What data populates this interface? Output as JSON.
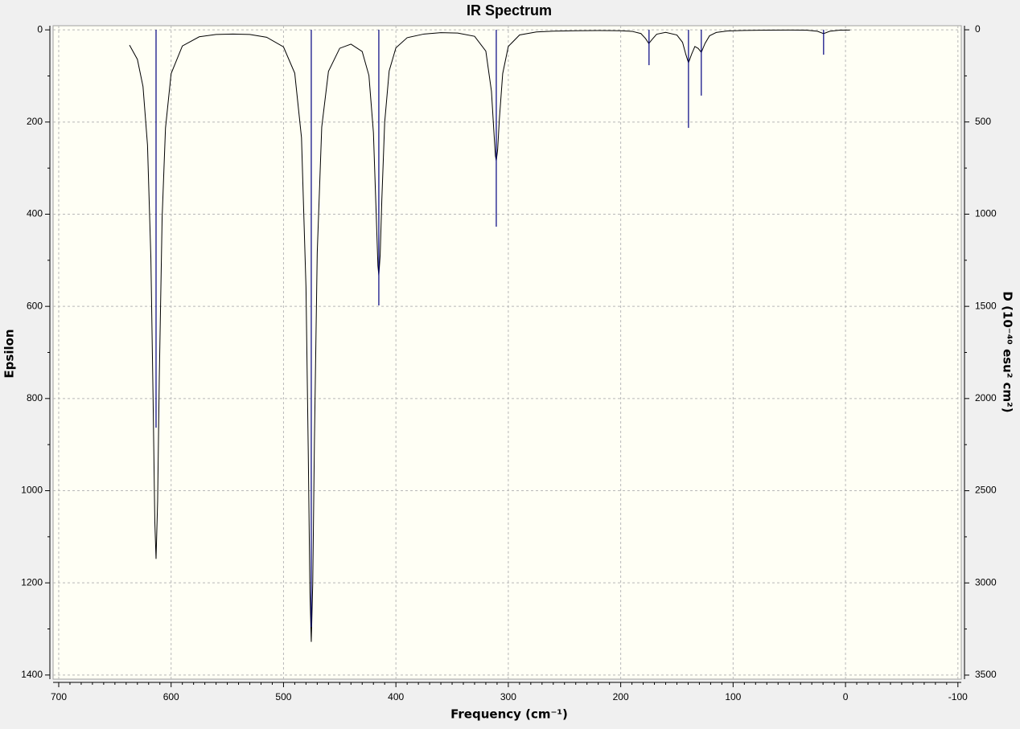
{
  "chart_data": {
    "type": "line",
    "title": "IR Spectrum",
    "x_label": "Frequency (cm⁻¹)",
    "y_label": "Epsilon",
    "y2_label": "D (10⁻⁴⁰ esu² cm²)",
    "xlim": [
      705,
      -103
    ],
    "ylim": [
      1409,
      -9
    ],
    "y2lim": [
      3522,
      -22
    ],
    "xticks": [
      700,
      600,
      500,
      400,
      300,
      200,
      100,
      0,
      -100
    ],
    "yticks": [
      0,
      200,
      400,
      600,
      800,
      1000,
      1200,
      1400
    ],
    "y2ticks": [
      0,
      500,
      1000,
      1500,
      2000,
      2500,
      3000,
      3500
    ],
    "grid": true,
    "series": [
      {
        "type": "line",
        "color": "#000000",
        "x": [
          637,
          630,
          625,
          621,
          618,
          616,
          614.5,
          613.4,
          612,
          610.5,
          608,
          605,
          600,
          590,
          575,
          560,
          545,
          530,
          515,
          500,
          490,
          484,
          480,
          478,
          476.5,
          475.3,
          474,
          472.5,
          470,
          466,
          460,
          450,
          440,
          430,
          424,
          420,
          417.5,
          416,
          415.2,
          414,
          412.5,
          410,
          406,
          400,
          390,
          375,
          360,
          345,
          330,
          320,
          315,
          313,
          311.5,
          310.7,
          309.5,
          308,
          305,
          300,
          290,
          275,
          260,
          240,
          220,
          200,
          190,
          182,
          178,
          175,
          172,
          168,
          160,
          150,
          145,
          142,
          139.7,
          137,
          134,
          131,
          128.3,
          125,
          121,
          115,
          105,
          90,
          70,
          50,
          35,
          25,
          19.5,
          14,
          5,
          -4
        ],
        "values": [
          33,
          64,
          123,
          250,
          495,
          807,
          1067,
          1148,
          1023,
          753,
          408,
          213,
          95,
          35,
          15,
          10,
          9,
          10,
          16,
          37,
          94,
          234,
          559,
          913,
          1219,
          1328,
          1202,
          893,
          484,
          211,
          90,
          40,
          31,
          47,
          99,
          223,
          402,
          512,
          533,
          488,
          367,
          201,
          89,
          39,
          17,
          9,
          6,
          7,
          14,
          46,
          133,
          214,
          273,
          284,
          260,
          195,
          95,
          36,
          11,
          4.5,
          2.7,
          1.8,
          1.5,
          1.9,
          3.1,
          8,
          18.6,
          29.6,
          20.6,
          9.4,
          5.5,
          11.1,
          27,
          53.7,
          71.3,
          53.3,
          36,
          40.3,
          48.8,
          29.5,
          12.9,
          5.6,
          2.3,
          1.2,
          0.6,
          0.4,
          0.7,
          3,
          8.2,
          3,
          0.7,
          0.3
        ]
      },
      {
        "type": "stick",
        "axis": "y2",
        "color": "#000080",
        "x": [
          613.4,
          475.3,
          415.2,
          310.7,
          174.8,
          139.7,
          128.3,
          19.5
        ],
        "values": [
          2158,
          3239,
          1495,
          1068,
          192,
          532,
          357,
          135
        ]
      }
    ]
  }
}
